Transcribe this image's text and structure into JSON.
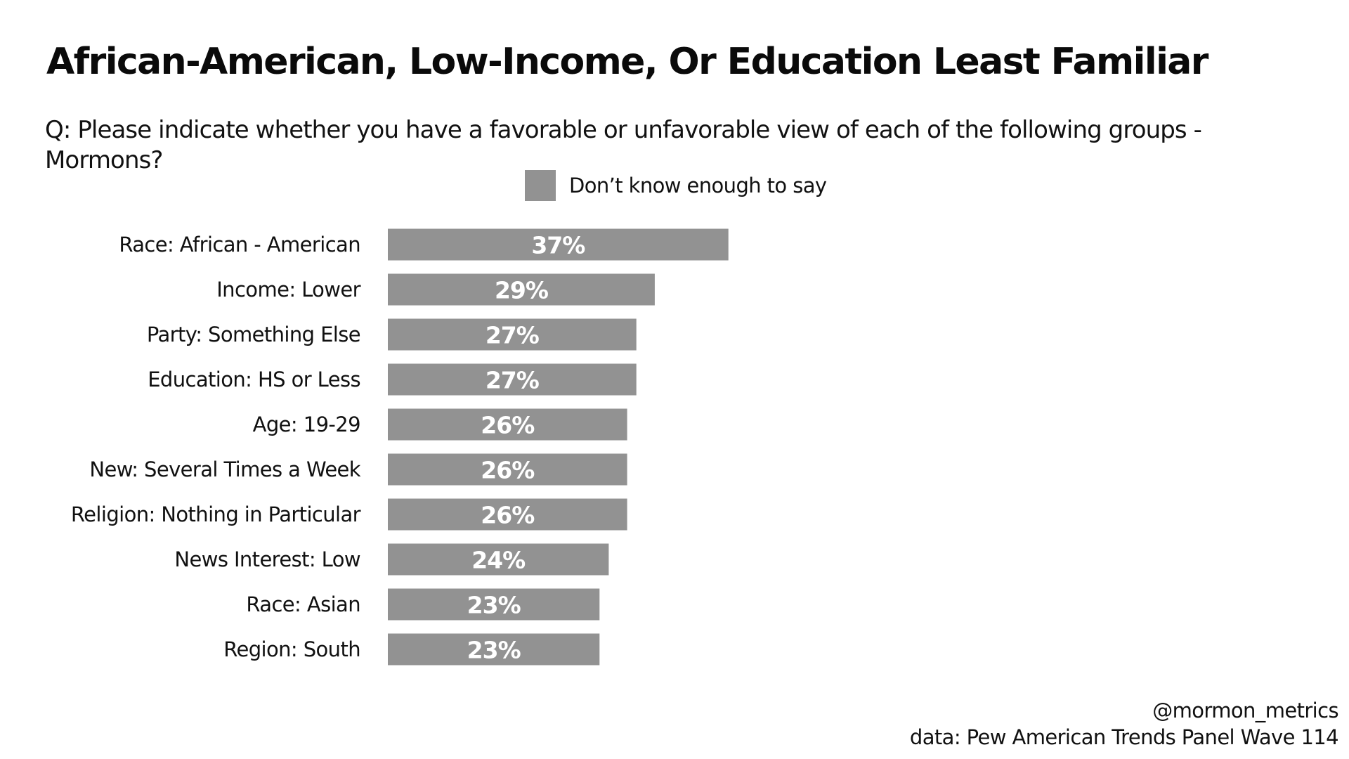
{
  "chart_data": {
    "type": "bar",
    "orientation": "horizontal",
    "title": "African-American, Low-Income, Or Education Least Familiar",
    "subtitle": "Q: Please indicate whether you have a favorable or unfavorable view of each of the following groups - Mormons?",
    "categories": [
      "Race: African - American",
      "Income: Lower",
      "Party: Something Else",
      "Education: HS or Less",
      "Age: 19-29",
      "New: Several Times a Week",
      "Religion: Nothing in Particular",
      "News Interest: Low",
      "Race: Asian",
      "Region: South"
    ],
    "series": [
      {
        "name": "Don’t know enough to say",
        "values": [
          37,
          29,
          27,
          27,
          26,
          26,
          26,
          24,
          23,
          23
        ],
        "value_labels": [
          "37%",
          "29%",
          "27%",
          "27%",
          "26%",
          "26%",
          "26%",
          "24%",
          "23%",
          "23%"
        ],
        "color": "#929292"
      }
    ],
    "xlim": [
      0,
      100
    ],
    "xlabel": "",
    "ylabel": "",
    "grid": false,
    "legend": "top-center",
    "data_label_color": "#ffffff"
  },
  "footer": {
    "handle": "@mormon_metrics",
    "source": "data: Pew American Trends Panel Wave 114"
  }
}
